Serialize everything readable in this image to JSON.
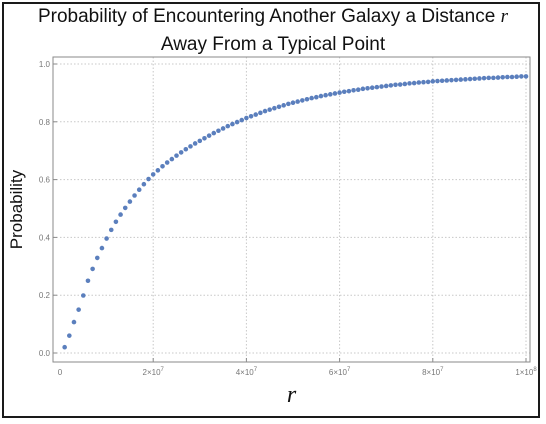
{
  "chart_data": {
    "type": "scatter",
    "title_line1": "Probability of Encountering Another Galaxy a Distance",
    "title_var": "r",
    "title_line2": "Away From a Typical Point",
    "xlabel": "r",
    "ylabel": "Probability",
    "xlim": [
      0,
      100000000
    ],
    "ylim": [
      0,
      1.0
    ],
    "x_ticks": [
      {
        "value": 20000000,
        "base": "2×10",
        "exp": "7"
      },
      {
        "value": 40000000,
        "base": "4×10",
        "exp": "7"
      },
      {
        "value": 60000000,
        "base": "6×10",
        "exp": "7"
      },
      {
        "value": 80000000,
        "base": "8×10",
        "exp": "7"
      },
      {
        "value": 100000000,
        "base": "1×10",
        "exp": "8"
      }
    ],
    "x_tick_zero": "0",
    "y_ticks": [
      {
        "value": 0.0,
        "label": "0.0"
      },
      {
        "value": 0.2,
        "label": "0.2"
      },
      {
        "value": 0.4,
        "label": "0.4"
      },
      {
        "value": 0.6,
        "label": "0.6"
      },
      {
        "value": 0.8,
        "label": "0.8"
      },
      {
        "value": 1.0,
        "label": "1.0"
      }
    ],
    "grid": true,
    "point_color": "#5b7fbd",
    "series": [
      {
        "x": [
          1000000,
          2000000,
          3000000,
          4000000,
          5000000,
          6000000,
          7000000,
          8000000,
          9000000,
          10000000,
          11000000,
          12000000,
          13000000,
          14000000,
          15000000,
          16000000,
          17000000,
          18000000,
          19000000,
          20000000,
          21000000,
          22000000,
          23000000,
          24000000,
          25000000,
          26000000,
          27000000,
          28000000,
          29000000,
          30000000,
          31000000,
          32000000,
          33000000,
          34000000,
          35000000,
          36000000,
          37000000,
          38000000,
          39000000,
          40000000,
          41000000,
          42000000,
          43000000,
          44000000,
          45000000,
          46000000,
          47000000,
          48000000,
          49000000,
          50000000,
          51000000,
          52000000,
          53000000,
          54000000,
          55000000,
          56000000,
          57000000,
          58000000,
          59000000,
          60000000,
          61000000,
          62000000,
          63000000,
          64000000,
          65000000,
          66000000,
          67000000,
          68000000,
          69000000,
          70000000,
          71000000,
          72000000,
          73000000,
          74000000,
          75000000,
          76000000,
          77000000,
          78000000,
          79000000,
          80000000,
          81000000,
          82000000,
          83000000,
          84000000,
          85000000,
          86000000,
          87000000,
          88000000,
          89000000,
          90000000,
          91000000,
          92000000,
          93000000,
          94000000,
          95000000,
          96000000,
          97000000,
          98000000,
          99000000,
          100000000
        ],
        "y": [
          0.02,
          0.06,
          0.107,
          0.15,
          0.199,
          0.25,
          0.291,
          0.329,
          0.363,
          0.396,
          0.426,
          0.454,
          0.479,
          0.502,
          0.524,
          0.545,
          0.565,
          0.584,
          0.602,
          0.618,
          0.632,
          0.646,
          0.659,
          0.671,
          0.683,
          0.694,
          0.705,
          0.715,
          0.725,
          0.734,
          0.743,
          0.752,
          0.761,
          0.769,
          0.777,
          0.785,
          0.792,
          0.799,
          0.806,
          0.813,
          0.819,
          0.825,
          0.831,
          0.837,
          0.842,
          0.847,
          0.852,
          0.857,
          0.862,
          0.866,
          0.87,
          0.874,
          0.878,
          0.882,
          0.885,
          0.889,
          0.892,
          0.895,
          0.898,
          0.901,
          0.904,
          0.906,
          0.909,
          0.911,
          0.914,
          0.916,
          0.918,
          0.92,
          0.922,
          0.924,
          0.926,
          0.928,
          0.929,
          0.931,
          0.933,
          0.934,
          0.936,
          0.937,
          0.938,
          0.94,
          0.941,
          0.942,
          0.943,
          0.944,
          0.945,
          0.946,
          0.947,
          0.948,
          0.949,
          0.95,
          0.951,
          0.952,
          0.952,
          0.953,
          0.954,
          0.955,
          0.955,
          0.956,
          0.957,
          0.957
        ]
      }
    ]
  }
}
